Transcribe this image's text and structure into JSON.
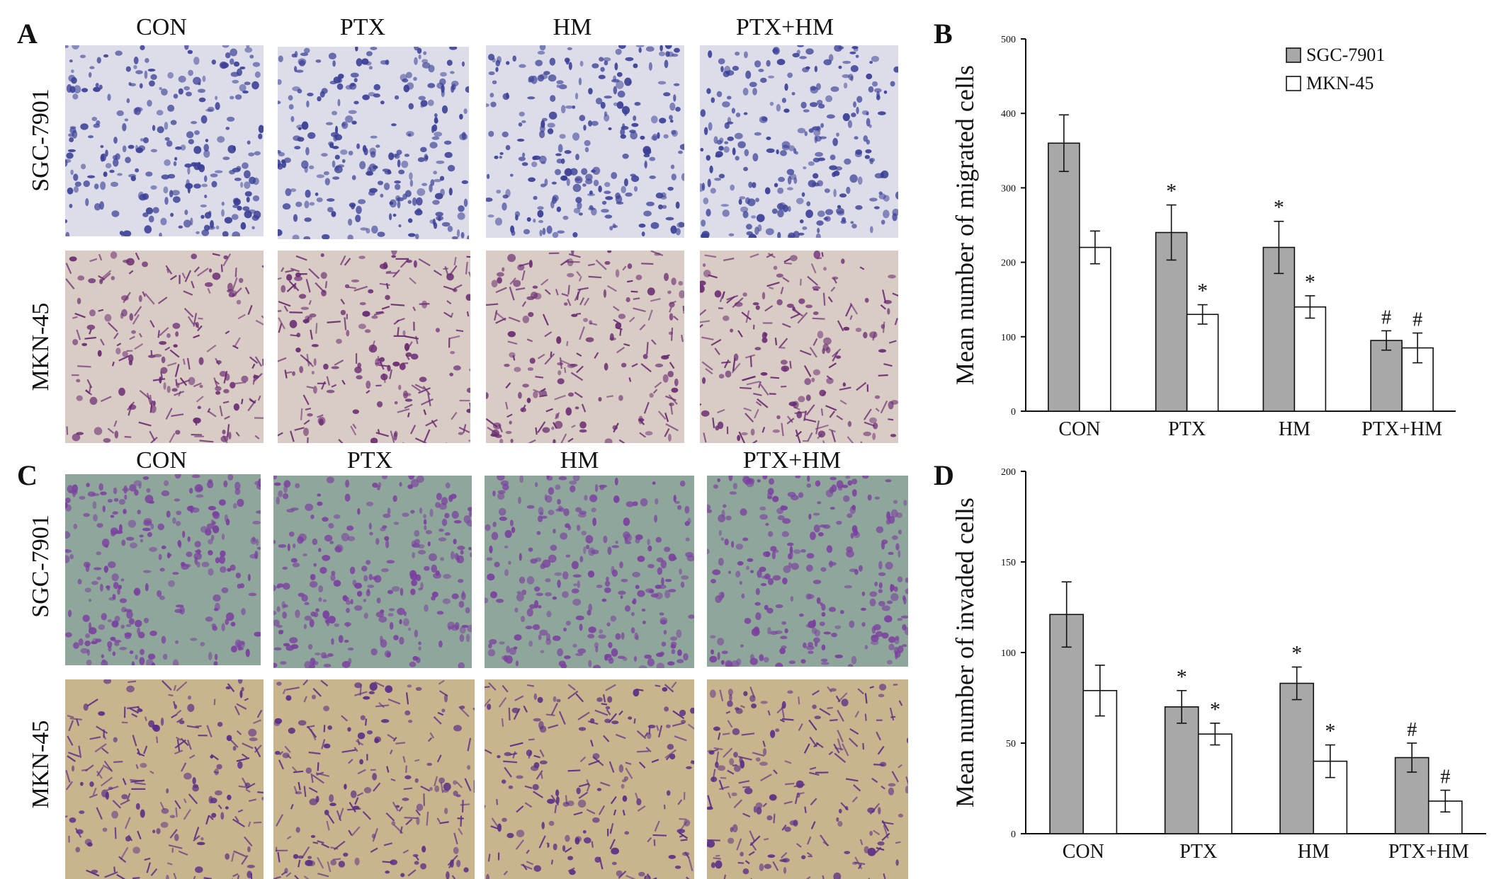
{
  "figure": {
    "panel_letters": [
      "A",
      "B",
      "C",
      "D"
    ],
    "column_labels": [
      "CON",
      "PTX",
      "HM",
      "PTX+HM"
    ],
    "row_labels": [
      "SGC-7901",
      "MKN-45"
    ],
    "image_tones": {
      "A_SGC-7901": {
        "bg": "#dcdde8",
        "cell": "#3a3f96"
      },
      "A_MKN-45": {
        "bg": "#d9ccc4",
        "cell": "#6a2a72"
      },
      "C_SGC-7901": {
        "bg": "#8fa79a",
        "cell": "#7b3fa0"
      },
      "C_MKN-45": {
        "bg": "#c9b58d",
        "cell": "#5b2e86"
      }
    }
  },
  "chart_data": [
    {
      "panel": "B",
      "type": "bar",
      "ylabel": "Mean number of migrated cells",
      "xlabel": "",
      "ylim": [
        0,
        500
      ],
      "yticks": [
        0,
        100,
        200,
        300,
        400,
        500
      ],
      "categories": [
        "CON",
        "PTX",
        "HM",
        "PTX+HM"
      ],
      "legend": "top-right",
      "series": [
        {
          "name": "SGC-7901",
          "color": "#a8a8a8",
          "values": [
            360,
            240,
            220,
            95
          ],
          "errors": [
            38,
            37,
            35,
            13
          ],
          "marks": [
            "",
            "*",
            "*",
            "#"
          ]
        },
        {
          "name": "MKN-45",
          "color": "#ffffff",
          "values": [
            220,
            130,
            140,
            85
          ],
          "errors": [
            22,
            13,
            15,
            20
          ],
          "marks": [
            "",
            "*",
            "*",
            "#"
          ]
        }
      ]
    },
    {
      "panel": "D",
      "type": "bar",
      "ylabel": "Mean number of invaded cells",
      "xlabel": "",
      "ylim": [
        0,
        200
      ],
      "yticks": [
        0,
        50,
        100,
        150,
        200
      ],
      "categories": [
        "CON",
        "PTX",
        "HM",
        "PTX+HM"
      ],
      "legend": "none",
      "series": [
        {
          "name": "SGC-7901",
          "color": "#a8a8a8",
          "values": [
            121,
            70,
            83,
            42
          ],
          "errors": [
            18,
            9,
            9,
            8
          ],
          "marks": [
            "",
            "*",
            "*",
            "#"
          ]
        },
        {
          "name": "MKN-45",
          "color": "#ffffff",
          "values": [
            79,
            55,
            40,
            18
          ],
          "errors": [
            14,
            6,
            9,
            6
          ],
          "marks": [
            "",
            "*",
            "*",
            "#"
          ]
        }
      ]
    }
  ]
}
